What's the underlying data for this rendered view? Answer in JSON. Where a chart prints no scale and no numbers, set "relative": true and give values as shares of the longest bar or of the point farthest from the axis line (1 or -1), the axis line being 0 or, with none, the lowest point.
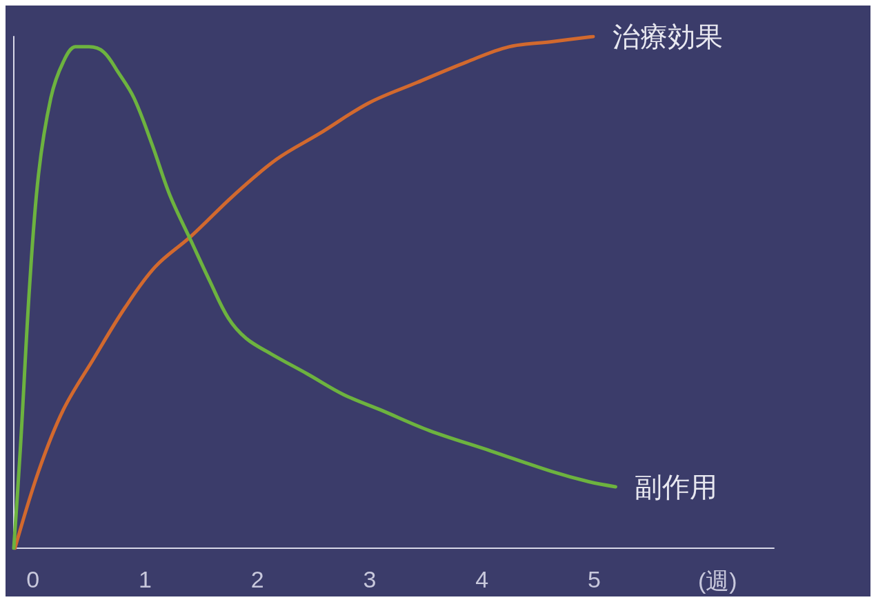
{
  "chart_data": {
    "type": "line",
    "relative": true,
    "xlabel": "(週)",
    "xlim": [
      -0.17,
      6.6
    ],
    "xticks": [
      0,
      1,
      2,
      3,
      4,
      5
    ],
    "grid": false,
    "legend": false,
    "marker": "none",
    "line_style": "solid",
    "series": [
      {
        "name": "治療効果",
        "color": "#d2692e",
        "x": [
          -0.16,
          0.05,
          0.27,
          0.54,
          0.82,
          1.09,
          1.41,
          1.79,
          2.17,
          2.55,
          2.99,
          3.42,
          3.86,
          4.24,
          4.62,
          4.99
        ],
        "values": [
          0,
          0.15,
          0.27,
          0.37,
          0.47,
          0.55,
          0.61,
          0.69,
          0.76,
          0.81,
          0.87,
          0.91,
          0.95,
          0.98,
          0.99,
          1.0
        ]
      },
      {
        "name": "副作用",
        "color": "#6db33f",
        "x": [
          -0.17,
          -0.11,
          -0.03,
          0.05,
          0.16,
          0.27,
          0.38,
          0.5,
          0.63,
          0.76,
          0.9,
          1.06,
          1.22,
          1.41,
          1.58,
          1.74,
          1.9,
          2.12,
          2.45,
          2.77,
          3.1,
          3.53,
          4.08,
          4.62,
          4.95,
          5.19
        ],
        "values": [
          0,
          0.2,
          0.51,
          0.73,
          0.88,
          0.95,
          0.98,
          0.98,
          0.97,
          0.93,
          0.88,
          0.79,
          0.69,
          0.6,
          0.52,
          0.45,
          0.41,
          0.38,
          0.34,
          0.3,
          0.27,
          0.23,
          0.19,
          0.15,
          0.13,
          0.12
        ]
      }
    ]
  }
}
